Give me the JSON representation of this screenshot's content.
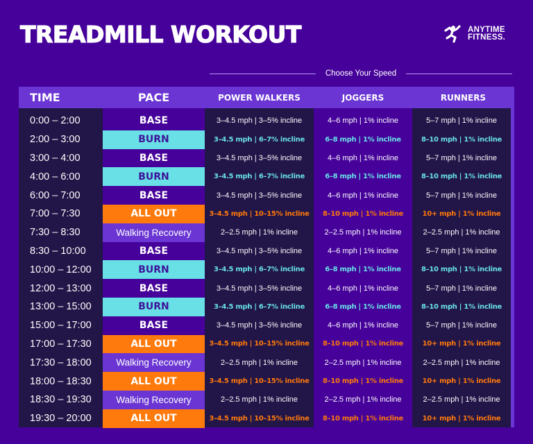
{
  "title": "TREADMILL WORKOUT",
  "logo": {
    "line1": "ANYTIME",
    "line2": "FITNESS.",
    "icon": "running-man-icon"
  },
  "speed_header": "Choose Your Speed",
  "colors": {
    "background": "#45019a",
    "header": "#6a35d3",
    "dark_cell": "#221548",
    "burn": "#68e0e6",
    "all_out": "#ff7a0c",
    "walking_recovery": "#6a35d3"
  },
  "columns": {
    "time": "TIME",
    "pace": "PACE",
    "power": "POWER WALKERS",
    "jog": "JOGGERS",
    "run": "RUNNERS"
  },
  "rows": [
    {
      "time": "0:00 – 2:00",
      "pace": "BASE",
      "type": "base",
      "power": "3–4.5 mph | 3–5% incline",
      "jog": "4–6 mph | 1% incline",
      "run": "5–7 mph | 1% incline"
    },
    {
      "time": "2:00 – 3:00",
      "pace": "BURN",
      "type": "burn",
      "power": "3–4.5 mph | 6–7% incline",
      "jog": "6–8 mph | 1% incline",
      "run": "8–10 mph | 1% incline"
    },
    {
      "time": "3:00 – 4:00",
      "pace": "BASE",
      "type": "base",
      "power": "3–4.5 mph | 3–5% incline",
      "jog": "4–6 mph | 1% incline",
      "run": "5–7 mph | 1% incline"
    },
    {
      "time": "4:00 – 6:00",
      "pace": "BURN",
      "type": "burn",
      "power": "3–4.5 mph | 6–7% incline",
      "jog": "6–8 mph | 1% incline",
      "run": "8–10 mph | 1% incline"
    },
    {
      "time": "6:00 –  7:00",
      "pace": "BASE",
      "type": "base",
      "power": "3–4.5 mph | 3–5% incline",
      "jog": "4–6 mph | 1% incline",
      "run": "5–7 mph | 1% incline"
    },
    {
      "time": "7:00 –  7:30",
      "pace": "ALL OUT",
      "type": "allout",
      "power": "3–4.5 mph | 10–15% incline",
      "jog": "8–10 mph | 1% incline",
      "run": "10+ mph | 1% incline"
    },
    {
      "time": "7:30 –  8:30",
      "pace": "Walking Recovery",
      "type": "walk",
      "power": "2–2.5 mph | 1% incline",
      "jog": "2–2.5 mph | 1% incline",
      "run": "2–2.5 mph | 1% incline"
    },
    {
      "time": "8:30 –  10:00",
      "pace": "BASE",
      "type": "base",
      "power": "3–4.5 mph | 3–5% incline",
      "jog": "4–6 mph | 1% incline",
      "run": "5–7 mph | 1% incline"
    },
    {
      "time": "10:00 – 12:00",
      "pace": "BURN",
      "type": "burn",
      "power": "3–4.5 mph | 6–7% incline",
      "jog": "6–8 mph | 1% incline",
      "run": "8–10 mph | 1% incline"
    },
    {
      "time": "12:00 – 13:00",
      "pace": "BASE",
      "type": "base",
      "power": "3–4.5 mph | 3–5% incline",
      "jog": "4–6 mph | 1% incline",
      "run": "5–7 mph | 1% incline"
    },
    {
      "time": "13:00 – 15:00",
      "pace": "BURN",
      "type": "burn",
      "power": "3–4.5 mph | 6–7% incline",
      "jog": "6–8 mph | 1% incline",
      "run": "8–10 mph | 1% incline"
    },
    {
      "time": "15:00 – 17:00",
      "pace": "BASE",
      "type": "base",
      "power": "3–4.5 mph | 3–5% incline",
      "jog": "4–6 mph | 1% incline",
      "run": "5–7 mph | 1% incline"
    },
    {
      "time": "17:00 – 17:30",
      "pace": "ALL OUT",
      "type": "allout",
      "power": "3–4.5 mph | 10–15% incline",
      "jog": "8–10 mph | 1% incline",
      "run": "10+ mph | 1% incline"
    },
    {
      "time": "17:30 – 18:00",
      "pace": "Walking Recovery",
      "type": "walk",
      "power": "2–2.5 mph | 1% incline",
      "jog": "2–2.5 mph | 1% incline",
      "run": "2–2.5 mph | 1% incline"
    },
    {
      "time": "18:00 – 18:30",
      "pace": "ALL OUT",
      "type": "allout",
      "power": "3–4.5 mph | 10–15% incline",
      "jog": "8–10 mph | 1% incline",
      "run": "10+ mph | 1% incline"
    },
    {
      "time": "18:30 – 19:30",
      "pace": "Walking Recovery",
      "type": "walk",
      "power": "2–2.5 mph | 1% incline",
      "jog": "2–2.5 mph | 1% incline",
      "run": "2–2.5 mph | 1% incline"
    },
    {
      "time": "19:30 – 20:00",
      "pace": "ALL OUT",
      "type": "allout",
      "power": "3–4.5 mph | 10–15% incline",
      "jog": "8–10 mph | 1% incline",
      "run": "10+ mph | 1% incline"
    }
  ]
}
